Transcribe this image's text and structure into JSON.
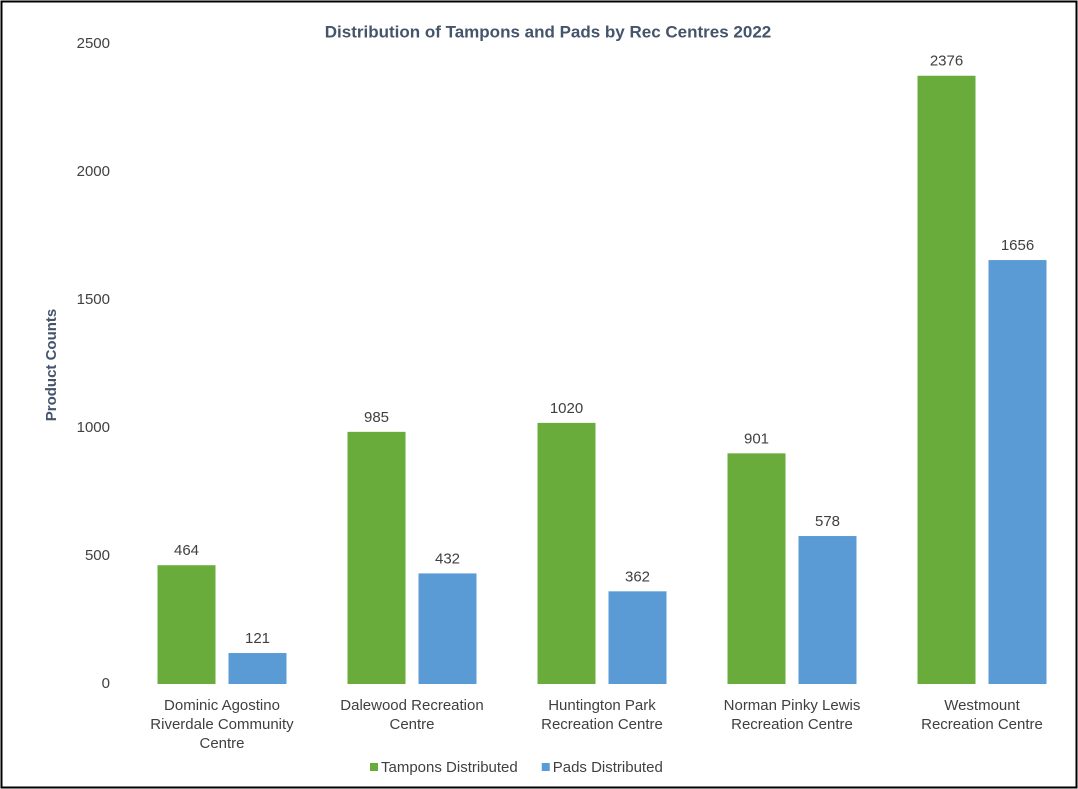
{
  "chart_data": {
    "type": "bar",
    "title": "Distribution of Tampons and Pads by Rec Centres 2022",
    "y_label": "Product Counts",
    "categories": [
      "Dominic Agostino Riverdale Community Centre",
      "Dalewood Recreation Centre",
      "Huntington Park Recreation Centre",
      "Norman Pinky Lewis Recreation Centre",
      "Westmount Recreation Centre"
    ],
    "series": [
      {
        "name": "Tampons Distributed",
        "color": "#6aac3c",
        "values": [
          464,
          985,
          1020,
          901,
          2376
        ]
      },
      {
        "name": "Pads Distributed",
        "color": "#5b9bd5",
        "values": [
          121,
          432,
          362,
          578,
          1656
        ]
      }
    ],
    "ylim": [
      0,
      2500
    ],
    "yticks": [
      0,
      500,
      1000,
      1500,
      2000,
      2500
    ],
    "grid": false,
    "legend": "bottom"
  }
}
